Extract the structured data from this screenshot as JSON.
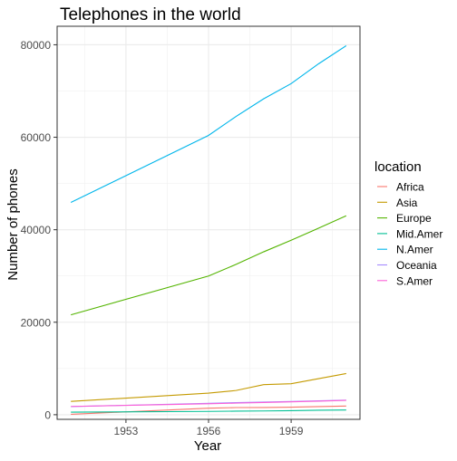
{
  "chart_data": {
    "type": "line",
    "title": "Telephones in the world",
    "xlabel": "Year",
    "ylabel": "Number of phones",
    "x": [
      1951,
      1956,
      1957,
      1958,
      1959,
      1960,
      1961
    ],
    "xticks": [
      "1953",
      "1956",
      "1959"
    ],
    "xlim": [
      1950.5,
      1961.5
    ],
    "yticks": [
      "0",
      "20000",
      "40000",
      "60000",
      "80000"
    ],
    "ylim": [
      -1000,
      84000
    ],
    "grid": true,
    "legend_title": "location",
    "legend_position": "right",
    "series": [
      {
        "name": "Africa",
        "color": "#F8766D",
        "values": [
          89,
          1411,
          1546,
          1565,
          1623,
          1761,
          1875
        ]
      },
      {
        "name": "Asia",
        "color": "#C49A00",
        "values": [
          2876,
          4660,
          5240,
          6500,
          6700,
          7800,
          8900
        ]
      },
      {
        "name": "Europe",
        "color": "#53B400",
        "values": [
          21600,
          29990,
          32510,
          35220,
          37720,
          40340,
          43030
        ]
      },
      {
        "name": "Mid.Amer",
        "color": "#00C094",
        "values": [
          555,
          715,
          770,
          814,
          882,
          970,
          1030
        ]
      },
      {
        "name": "N.Amer",
        "color": "#00B6EB",
        "values": [
          45900,
          60400,
          64500,
          68300,
          71600,
          75900,
          79800
        ]
      },
      {
        "name": "Oceania",
        "color": "#A58AFF",
        "values": [
          1760,
          2460,
          2610,
          2730,
          2860,
          3010,
          3160
        ]
      },
      {
        "name": "S.Amer",
        "color": "#FB61D7",
        "values": [
          1790,
          2360,
          2500,
          2640,
          2780,
          2920,
          3100
        ]
      }
    ]
  }
}
